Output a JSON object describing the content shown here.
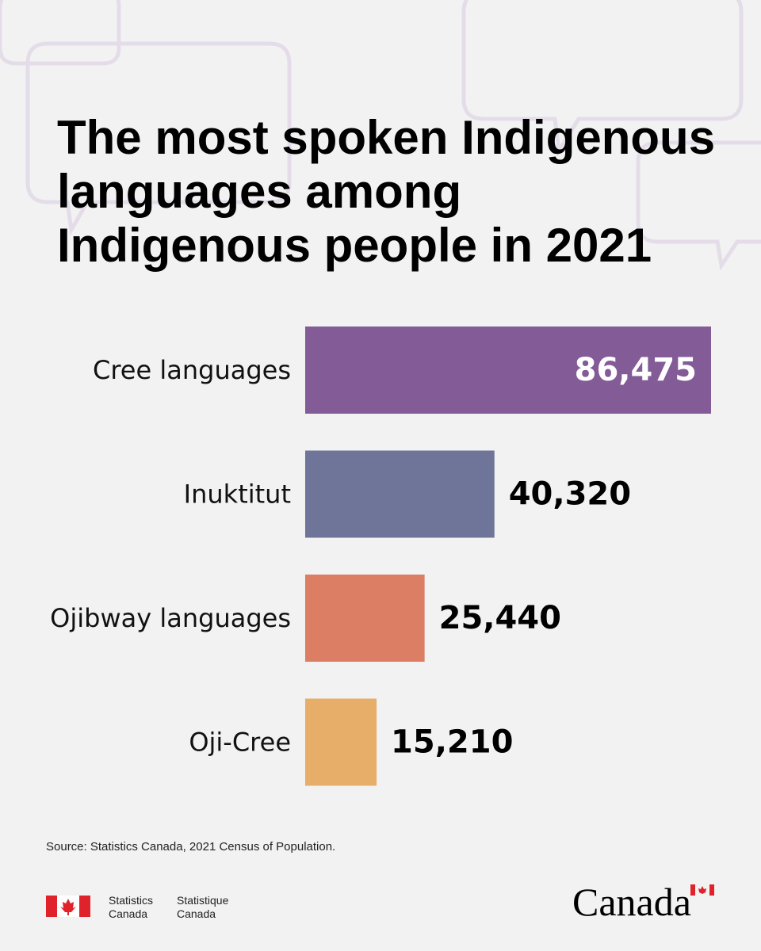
{
  "chart_data": {
    "type": "bar",
    "orientation": "horizontal",
    "title": [
      "The most spoken Indigenous",
      "languages among",
      "Indigenous people in 2021"
    ],
    "categories": [
      "Cree languages",
      "Inuktitut",
      "Ojibway languages",
      "Oji-Cree"
    ],
    "values": [
      86475,
      40320,
      25440,
      15210
    ],
    "value_labels": [
      "86,475",
      "40,320",
      "25,440",
      "15,210"
    ],
    "colors": [
      "#825b97",
      "#6f7599",
      "#dc7e63",
      "#e6ae69"
    ],
    "source": "Source: Statistics Canada, 2021 Census of Population."
  },
  "footer": {
    "signature_en": [
      "Statistics",
      "Canada"
    ],
    "signature_fr": [
      "Statistique",
      "Canada"
    ],
    "wordmark": "Canada"
  }
}
